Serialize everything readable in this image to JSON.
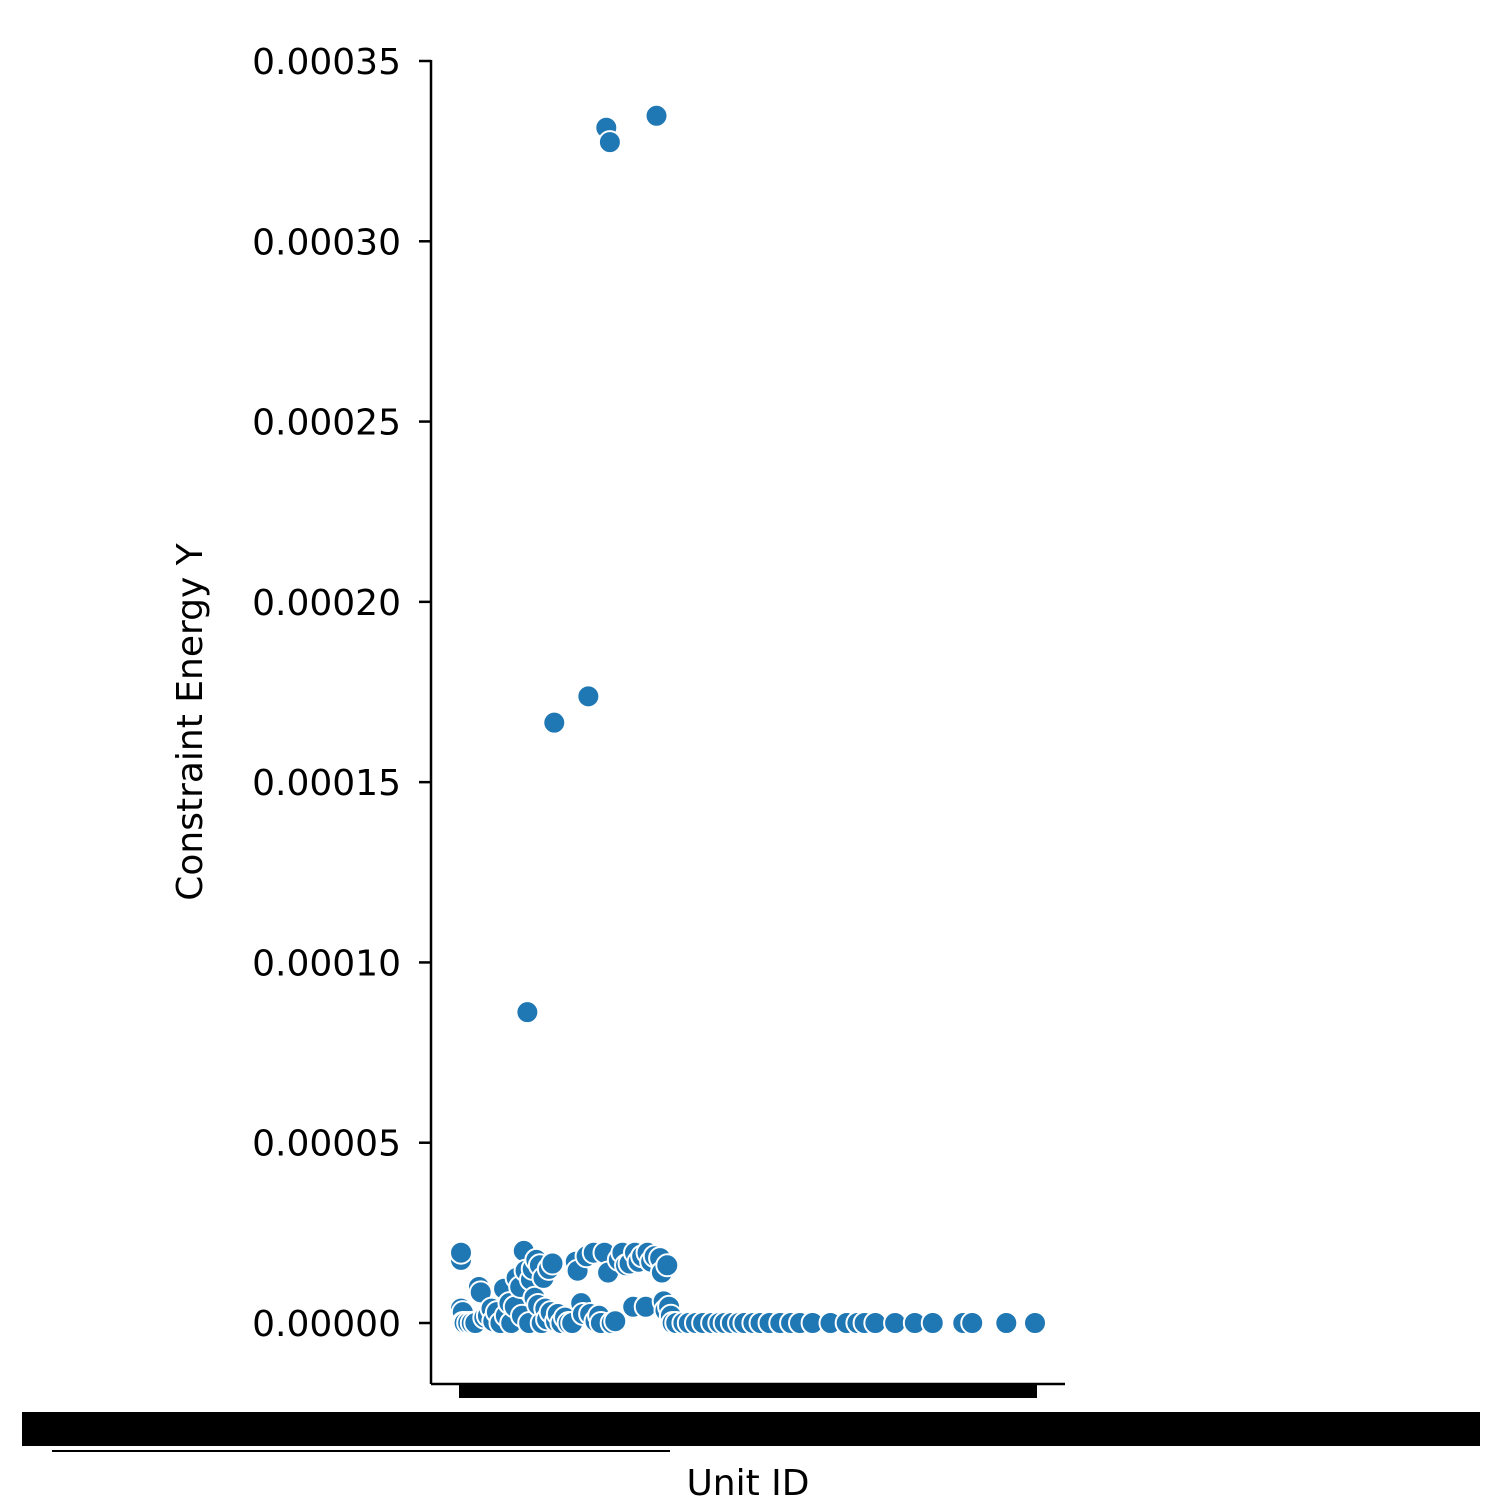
{
  "chart_data": {
    "type": "scatter",
    "title": "",
    "xlabel": "Unit ID",
    "ylabel": "Constraint Energy Y",
    "ylim": [
      -1.65e-05,
      0.00035
    ],
    "yticks": [
      "0.00000",
      "0.00005",
      "0.00010",
      "0.00015",
      "0.00020",
      "0.00025",
      "0.00030",
      "0.00035"
    ],
    "ytick_values": [
      0,
      5e-05,
      0.0001,
      0.00015,
      0.0002,
      0.00025,
      0.0003,
      0.00035
    ],
    "x_tick_labels_note": "unreadable overlapping categorical labels",
    "grid": false,
    "marker_color": "#1f77b4",
    "marker_edge_color": "#ffffff",
    "x_index_range": [
      0,
      320
    ],
    "points": [
      {
        "x": 0,
        "y": 1.75e-05
      },
      {
        "x": 0,
        "y": 1.95e-05
      },
      {
        "x": 0,
        "y": 4e-06
      },
      {
        "x": 1,
        "y": 3e-06
      },
      {
        "x": 1,
        "y": 0.0
      },
      {
        "x": 2,
        "y": 0.0
      },
      {
        "x": 4,
        "y": 0.0
      },
      {
        "x": 6,
        "y": 0.0
      },
      {
        "x": 8,
        "y": 0.0
      },
      {
        "x": 10,
        "y": 1e-05
      },
      {
        "x": 11,
        "y": 8.5e-06
      },
      {
        "x": 13,
        "y": 1.5e-06
      },
      {
        "x": 15,
        "y": 2e-06
      },
      {
        "x": 17,
        "y": 4e-06
      },
      {
        "x": 18,
        "y": 5e-07
      },
      {
        "x": 20,
        "y": 3e-06
      },
      {
        "x": 22,
        "y": 0.0
      },
      {
        "x": 24,
        "y": 9.5e-06
      },
      {
        "x": 25,
        "y": 2e-06
      },
      {
        "x": 27,
        "y": 5.5e-06
      },
      {
        "x": 28,
        "y": 0.0
      },
      {
        "x": 30,
        "y": 4.5e-06
      },
      {
        "x": 31,
        "y": 1.25e-05
      },
      {
        "x": 33,
        "y": 1e-05
      },
      {
        "x": 34,
        "y": 2e-06
      },
      {
        "x": 35,
        "y": 2e-05
      },
      {
        "x": 36,
        "y": 1.45e-05
      },
      {
        "x": 37,
        "y": 8.62e-05
      },
      {
        "x": 38,
        "y": 0.0
      },
      {
        "x": 39,
        "y": 1.2e-05
      },
      {
        "x": 40,
        "y": 1.5e-05
      },
      {
        "x": 41,
        "y": 7e-06
      },
      {
        "x": 42,
        "y": 1.75e-05
      },
      {
        "x": 43,
        "y": 5e-06
      },
      {
        "x": 44,
        "y": 1.6e-05
      },
      {
        "x": 45,
        "y": 0.0
      },
      {
        "x": 46,
        "y": 1.25e-05
      },
      {
        "x": 47,
        "y": 4e-06
      },
      {
        "x": 48,
        "y": 1e-06
      },
      {
        "x": 49,
        "y": 1.5e-05
      },
      {
        "x": 50,
        "y": 3e-06
      },
      {
        "x": 51,
        "y": 1.65e-05
      },
      {
        "x": 52,
        "y": 0.0001665
      },
      {
        "x": 53,
        "y": 5e-07
      },
      {
        "x": 54,
        "y": 2.5e-06
      },
      {
        "x": 56,
        "y": 0.0
      },
      {
        "x": 58,
        "y": 1.5e-06
      },
      {
        "x": 60,
        "y": 0.0
      },
      {
        "x": 62,
        "y": 0.0
      },
      {
        "x": 64,
        "y": 1.7e-05
      },
      {
        "x": 65,
        "y": 1.45e-05
      },
      {
        "x": 67,
        "y": 5.5e-06
      },
      {
        "x": 68,
        "y": 2.5e-06
      },
      {
        "x": 70,
        "y": 1.85e-05
      },
      {
        "x": 71,
        "y": 0.0001738
      },
      {
        "x": 72,
        "y": 2.5e-06
      },
      {
        "x": 74,
        "y": 1.95e-05
      },
      {
        "x": 75,
        "y": 5e-07
      },
      {
        "x": 77,
        "y": 2e-06
      },
      {
        "x": 78,
        "y": 0.0
      },
      {
        "x": 80,
        "y": 1.95e-05
      },
      {
        "x": 81,
        "y": 0.0003315
      },
      {
        "x": 82,
        "y": 1.4e-05
      },
      {
        "x": 83,
        "y": 0.0003275
      },
      {
        "x": 84,
        "y": 0.0
      },
      {
        "x": 86,
        "y": 5e-07
      },
      {
        "x": 88,
        "y": 1.75e-05
      },
      {
        "x": 90,
        "y": 1.95e-05
      },
      {
        "x": 92,
        "y": 1.6e-05
      },
      {
        "x": 94,
        "y": 1.65e-05
      },
      {
        "x": 96,
        "y": 4.5e-06
      },
      {
        "x": 97,
        "y": 1.95e-05
      },
      {
        "x": 99,
        "y": 1.7e-05
      },
      {
        "x": 101,
        "y": 1.85e-05
      },
      {
        "x": 103,
        "y": 4.5e-06
      },
      {
        "x": 104,
        "y": 1.95e-05
      },
      {
        "x": 106,
        "y": 1.7e-05
      },
      {
        "x": 108,
        "y": 1.85e-05
      },
      {
        "x": 109,
        "y": 0.0003348
      },
      {
        "x": 111,
        "y": 1.8e-05
      },
      {
        "x": 112,
        "y": 1.4e-05
      },
      {
        "x": 113,
        "y": 6e-06
      },
      {
        "x": 114,
        "y": 3.5e-06
      },
      {
        "x": 115,
        "y": 1.6e-05
      },
      {
        "x": 116,
        "y": 4.5e-06
      },
      {
        "x": 117,
        "y": 2e-06
      },
      {
        "x": 118,
        "y": 0.0
      },
      {
        "x": 120,
        "y": 0.0
      },
      {
        "x": 124,
        "y": 0.0
      },
      {
        "x": 127,
        "y": 0.0
      },
      {
        "x": 131,
        "y": 0.0
      },
      {
        "x": 135,
        "y": 0.0
      },
      {
        "x": 140,
        "y": 0.0
      },
      {
        "x": 144,
        "y": 0.0
      },
      {
        "x": 147,
        "y": 0.0
      },
      {
        "x": 151,
        "y": 0.0
      },
      {
        "x": 155,
        "y": 0.0
      },
      {
        "x": 158,
        "y": 0.0
      },
      {
        "x": 163,
        "y": 0.0
      },
      {
        "x": 167,
        "y": 0.0
      },
      {
        "x": 172,
        "y": 0.0
      },
      {
        "x": 178,
        "y": 0.0
      },
      {
        "x": 184,
        "y": 0.0
      },
      {
        "x": 189,
        "y": 0.0
      },
      {
        "x": 196,
        "y": 0.0
      },
      {
        "x": 206,
        "y": 0.0
      },
      {
        "x": 215,
        "y": 0.0
      },
      {
        "x": 221,
        "y": 0.0
      },
      {
        "x": 225,
        "y": 0.0
      },
      {
        "x": 231,
        "y": 0.0
      },
      {
        "x": 242,
        "y": 0.0
      },
      {
        "x": 253,
        "y": 0.0
      },
      {
        "x": 263,
        "y": 0.0
      },
      {
        "x": 280,
        "y": 0.0
      },
      {
        "x": 285,
        "y": 0.0
      },
      {
        "x": 304,
        "y": 0.0
      },
      {
        "x": 320,
        "y": 0.0
      }
    ]
  }
}
